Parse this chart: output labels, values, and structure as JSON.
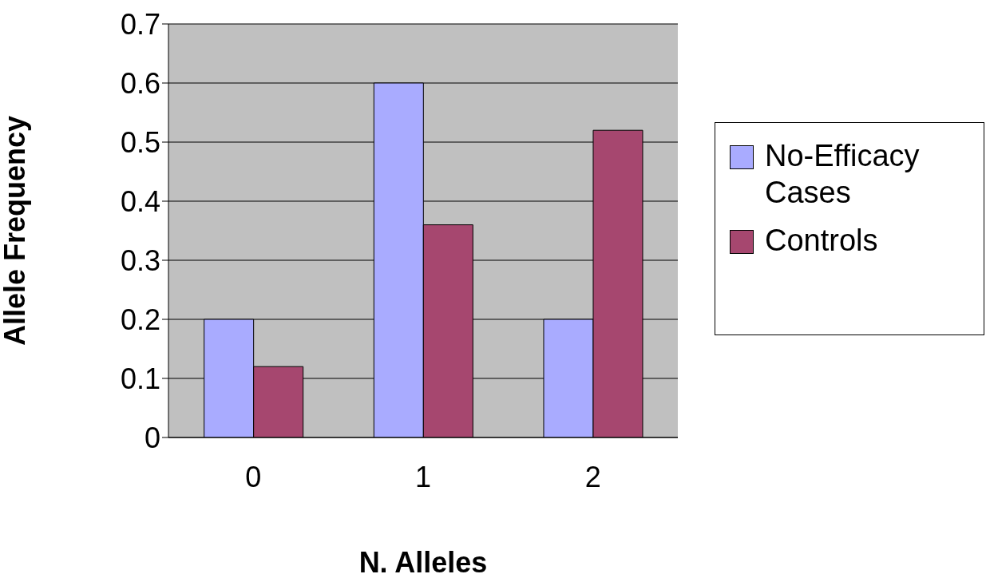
{
  "chart_data": {
    "type": "bar",
    "xlabel": "N. Alleles",
    "ylabel": "Allele Frequency",
    "categories": [
      "0",
      "1",
      "2"
    ],
    "series": [
      {
        "name": "No-Efficacy Cases",
        "color": "#a9abff",
        "values": [
          0.2,
          0.6,
          0.2
        ]
      },
      {
        "name": "Controls",
        "color": "#a6476f",
        "values": [
          0.12,
          0.36,
          0.52
        ]
      }
    ],
    "ylim": [
      0,
      0.7
    ],
    "yticks": [
      0,
      0.1,
      0.2,
      0.3,
      0.4,
      0.5,
      0.6,
      0.7
    ],
    "grid": "y",
    "legend": "right"
  }
}
